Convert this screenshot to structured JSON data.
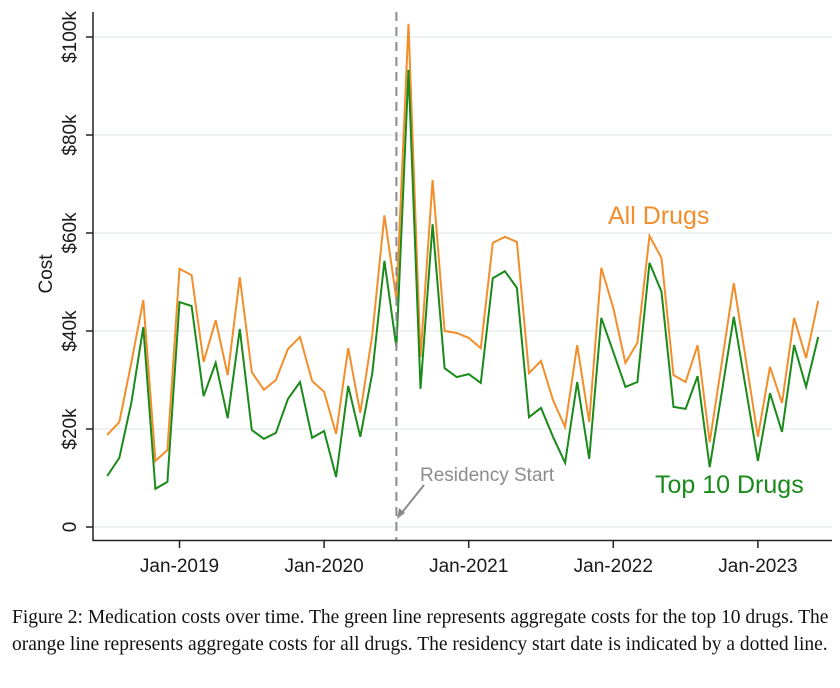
{
  "chart_data": {
    "type": "line",
    "title": "",
    "xlabel": "",
    "ylabel": "Cost",
    "ylim": [
      0,
      105000
    ],
    "yticks": [
      0,
      20000,
      40000,
      60000,
      80000,
      100000
    ],
    "ytick_labels": [
      "0",
      "$20k",
      "$40k",
      "$60k",
      "$80k",
      "$100k"
    ],
    "xticks": [
      "Jan-2019",
      "Jan-2020",
      "Jan-2021",
      "Jan-2022",
      "Jan-2023"
    ],
    "grid": true,
    "x": [
      "2018-07",
      "2018-08",
      "2018-09",
      "2018-10",
      "2018-11",
      "2018-12",
      "2019-01",
      "2019-02",
      "2019-03",
      "2019-04",
      "2019-05",
      "2019-06",
      "2019-07",
      "2019-08",
      "2019-09",
      "2019-10",
      "2019-11",
      "2019-12",
      "2020-01",
      "2020-02",
      "2020-03",
      "2020-04",
      "2020-05",
      "2020-06",
      "2020-07",
      "2020-08",
      "2020-09",
      "2020-10",
      "2020-11",
      "2020-12",
      "2021-01",
      "2021-02",
      "2021-03",
      "2021-04",
      "2021-05",
      "2021-06",
      "2021-07",
      "2021-08",
      "2021-09",
      "2021-10",
      "2021-11",
      "2021-12",
      "2022-01",
      "2022-02",
      "2022-03",
      "2022-04",
      "2022-05",
      "2022-06",
      "2022-07",
      "2022-08",
      "2022-09",
      "2022-10",
      "2022-11",
      "2022-12",
      "2023-01",
      "2023-02",
      "2023-03",
      "2023-04",
      "2023-05",
      "2023-06"
    ],
    "series": [
      {
        "name": "All Drugs",
        "color": "#f28e2b",
        "values": [
          18800,
          21400,
          33500,
          46300,
          13500,
          15700,
          52700,
          51400,
          33700,
          42200,
          31000,
          51000,
          31600,
          28000,
          30000,
          36300,
          38800,
          29800,
          27600,
          19000,
          36500,
          23300,
          39200,
          63600,
          46500,
          102700,
          34700,
          70800,
          40000,
          39600,
          38600,
          36500,
          58000,
          59200,
          58200,
          31400,
          33900,
          25900,
          20400,
          37100,
          21400,
          52900,
          44700,
          33500,
          37600,
          59400,
          54900,
          31000,
          29600,
          37100,
          17300,
          33500,
          49800,
          34100,
          18400,
          32700,
          25300,
          42700,
          34500,
          46100
        ]
      },
      {
        "name": "Top 10 Drugs",
        "color": "#1a8a1a",
        "values": [
          10400,
          14100,
          25300,
          40800,
          7800,
          9200,
          45900,
          45100,
          26700,
          33500,
          22200,
          40400,
          19800,
          18000,
          19200,
          26100,
          29600,
          18200,
          19600,
          10200,
          28800,
          18400,
          31400,
          54300,
          36700,
          93300,
          28200,
          61800,
          32400,
          30600,
          31200,
          29400,
          50800,
          52200,
          48800,
          22400,
          24300,
          18400,
          13100,
          29600,
          13900,
          42700,
          35700,
          28600,
          29600,
          53900,
          48000,
          24500,
          24100,
          30800,
          12200,
          27500,
          42900,
          28200,
          13500,
          27300,
          19400,
          37100,
          28600,
          38800
        ]
      }
    ],
    "annotations": [
      {
        "text": "All Drugs",
        "series": "All Drugs"
      },
      {
        "text": "Top 10 Drugs",
        "series": "Top 10 Drugs"
      },
      {
        "text": "Residency Start",
        "x": "2020-07",
        "style": "dashed vertical line with arrow",
        "color": "#8c8c8c"
      }
    ],
    "legend": "none (inline labels)"
  },
  "labels": {
    "ylabel": "Cost",
    "all_drugs": "All Drugs",
    "top10": "Top 10 Drugs",
    "residency": "Residency Start"
  },
  "caption": "Figure 2: Medication costs over time. The green line represents aggregate costs for the top 10 drugs. The orange line represents aggregate costs for all drugs. The residency start date is indicated by a dotted line."
}
